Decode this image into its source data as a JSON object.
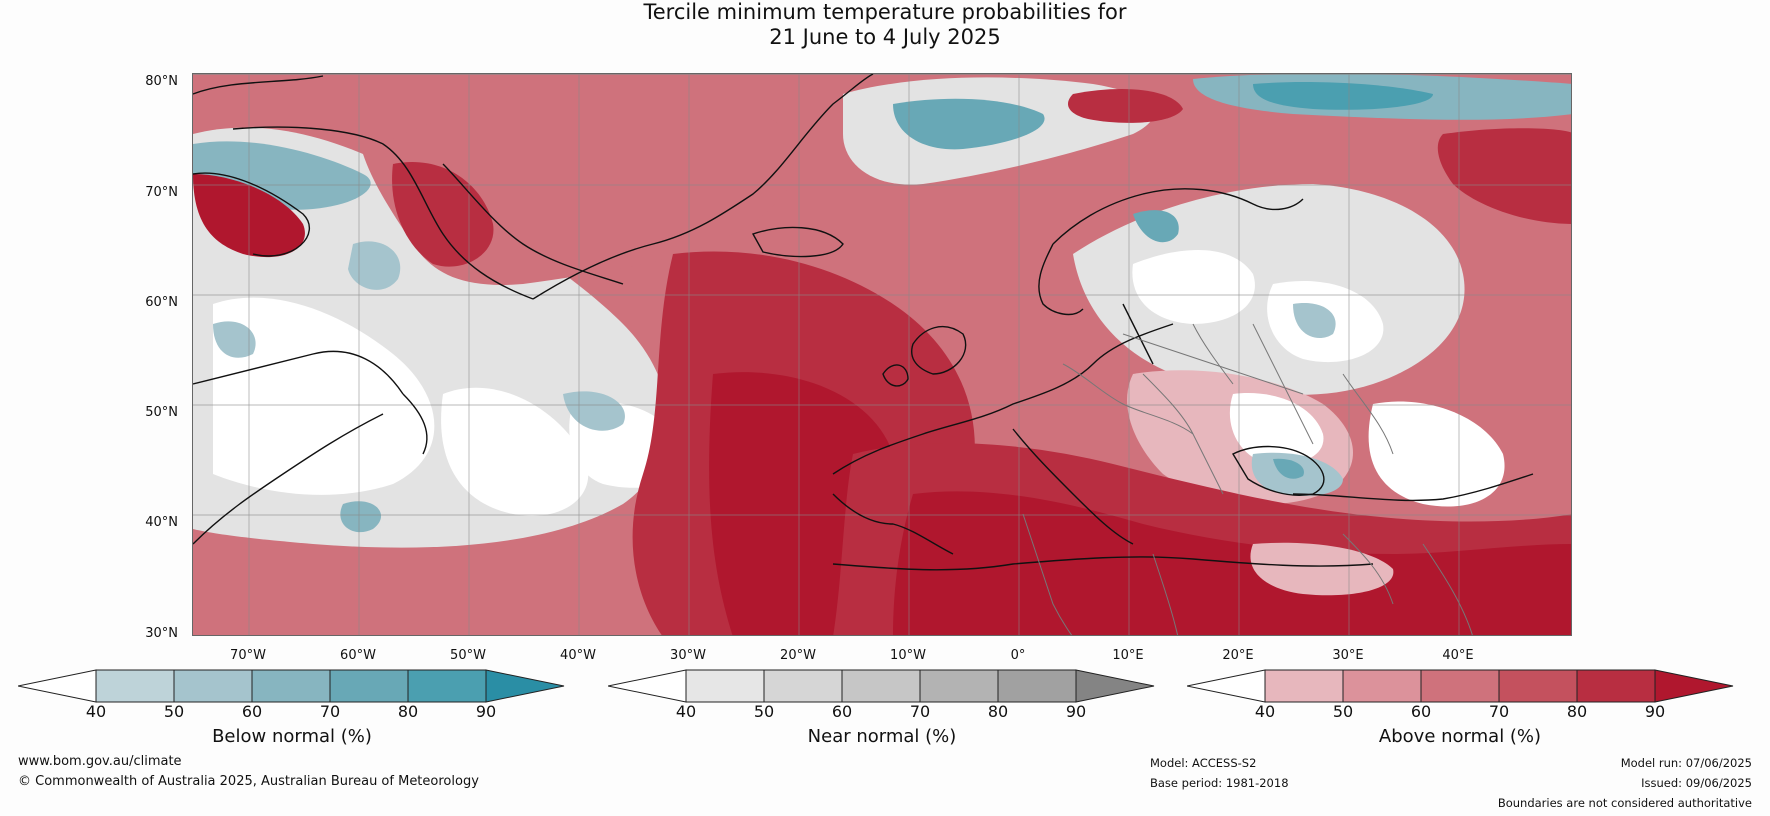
{
  "title": {
    "line1": "Tercile minimum temperature probabilities for",
    "line2": "21 June to 4 July 2025"
  },
  "map": {
    "lat_labels": [
      "80°N",
      "70°N",
      "60°N",
      "50°N",
      "40°N",
      "30°N"
    ],
    "lon_labels": [
      "70°W",
      "60°W",
      "50°W",
      "40°W",
      "30°W",
      "20°W",
      "10°W",
      "0°",
      "10°E",
      "20°E",
      "30°E",
      "40°E"
    ]
  },
  "legends": {
    "below": {
      "title": "Below normal (%)",
      "ticks": [
        "40",
        "50",
        "60",
        "70",
        "80",
        "90"
      ],
      "colors": [
        "#bed3d9",
        "#a5c4cd",
        "#87b5c0",
        "#68a8b6",
        "#4b9fb0",
        "#2a8ea5"
      ]
    },
    "near": {
      "title": "Near normal (%)",
      "ticks": [
        "40",
        "50",
        "60",
        "70",
        "80",
        "90"
      ],
      "colors": [
        "#e6e6e6",
        "#d6d6d6",
        "#c6c6c6",
        "#b3b3b3",
        "#a1a1a1",
        "#848484"
      ]
    },
    "above": {
      "title": "Above normal (%)",
      "ticks": [
        "40",
        "50",
        "60",
        "70",
        "80",
        "90"
      ],
      "colors": [
        "#e7b7bd",
        "#dc929b",
        "#cf727c",
        "#c4515e",
        "#b82e41",
        "#b0172e"
      ]
    }
  },
  "footer": {
    "url": "www.bom.gov.au/climate",
    "copyright": "© Commonwealth of Australia 2025, Australian Bureau of Meteorology",
    "model": "Model: ACCESS-S2",
    "base_period": "Base period: 1981-2018",
    "model_run": "Model run: 07/06/2025",
    "issued": "Issued: 09/06/2025",
    "disclaimer": "Boundaries are not considered authoritative"
  }
}
